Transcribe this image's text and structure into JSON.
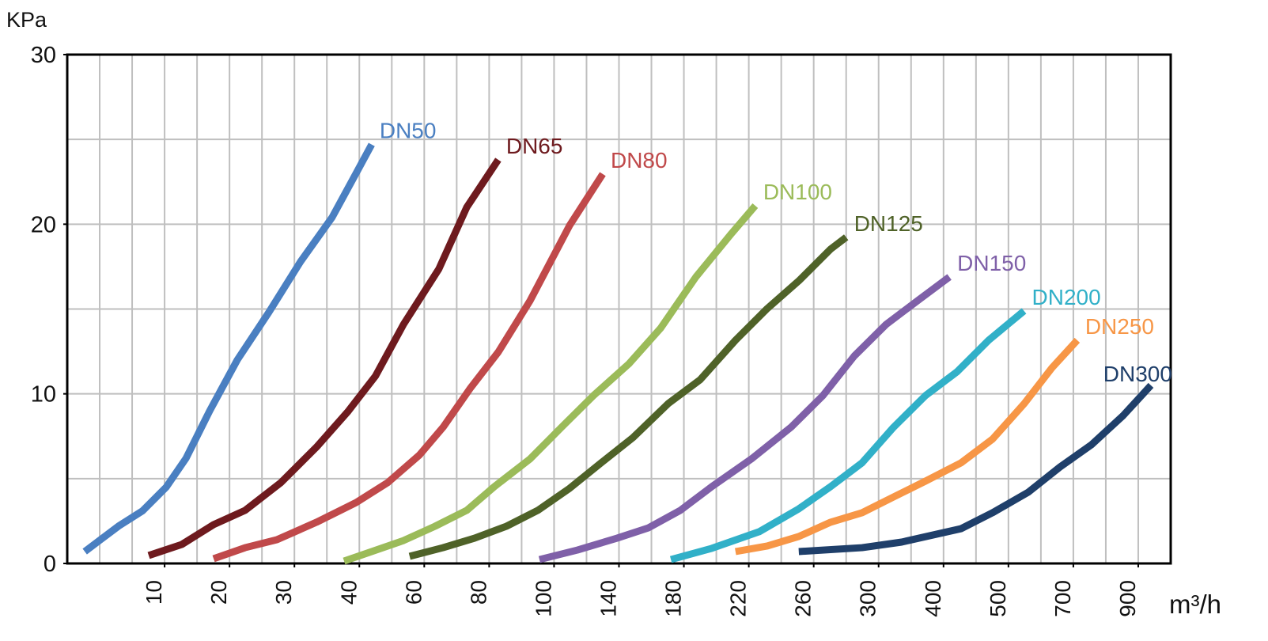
{
  "chart_data": {
    "type": "line",
    "y_label": "KPa",
    "x_label": "m³/h",
    "xlim": [
      0,
      34
    ],
    "ylim": [
      0,
      30
    ],
    "xticks": [
      {
        "value": 3,
        "label": "10"
      },
      {
        "value": 5,
        "label": "20"
      },
      {
        "value": 7,
        "label": "30"
      },
      {
        "value": 9,
        "label": "40"
      },
      {
        "value": 11,
        "label": "60"
      },
      {
        "value": 13,
        "label": "80"
      },
      {
        "value": 15,
        "label": "100"
      },
      {
        "value": 17,
        "label": "140"
      },
      {
        "value": 19,
        "label": "180"
      },
      {
        "value": 21,
        "label": "220"
      },
      {
        "value": 23,
        "label": "260"
      },
      {
        "value": 25,
        "label": "300"
      },
      {
        "value": 27,
        "label": "400"
      },
      {
        "value": 29,
        "label": "500"
      },
      {
        "value": 31,
        "label": "700"
      },
      {
        "value": 33,
        "label": "900"
      }
    ],
    "xgrid": [
      1,
      2,
      3,
      4,
      5,
      6,
      7,
      8,
      9,
      10,
      11,
      12,
      13,
      14,
      15,
      16,
      17,
      18,
      19,
      20,
      21,
      22,
      23,
      24,
      25,
      26,
      27,
      28,
      29,
      30,
      31,
      32,
      33
    ],
    "yticks": [
      0,
      10,
      20,
      30
    ],
    "ygrid": [
      5,
      10,
      15,
      20,
      25
    ],
    "grid": true,
    "series": [
      {
        "name": "DN50",
        "color": "#4a7fc1",
        "x": [
          0.54,
          1.58,
          2.32,
          3.05,
          3.66,
          4.39,
          5.24,
          6.21,
          7.19,
          8.16,
          8.9,
          9.38
        ],
        "values": [
          0.7,
          2.2,
          3.1,
          4.5,
          6.2,
          9.0,
          12.0,
          14.8,
          17.8,
          20.4,
          23.0,
          24.7
        ]
      },
      {
        "name": "DN65",
        "color": "#6e1a1e",
        "x": [
          2.51,
          3.53,
          4.51,
          5.48,
          6.58,
          7.68,
          8.65,
          9.5,
          10.36,
          11.45,
          12.31,
          13.28
        ],
        "values": [
          0.47,
          1.12,
          2.29,
          3.13,
          4.76,
          6.86,
          8.96,
          11.06,
          14.09,
          17.36,
          21.0,
          23.8
        ]
      },
      {
        "name": "DN80",
        "color": "#c0494a",
        "x": [
          4.51,
          5.48,
          6.46,
          7.68,
          8.9,
          9.87,
          10.85,
          11.58,
          12.43,
          13.28,
          14.26,
          15.48,
          16.5
        ],
        "values": [
          0.28,
          0.93,
          1.4,
          2.43,
          3.59,
          4.76,
          6.39,
          8.03,
          10.36,
          12.46,
          15.49,
          19.93,
          22.96
        ]
      },
      {
        "name": "DN100",
        "color": "#9bbb59",
        "x": [
          8.53,
          9.38,
          10.36,
          11.33,
          12.31,
          13.16,
          14.26,
          15.23,
          16.21,
          17.3,
          18.28,
          19.37,
          20.47,
          21.2
        ],
        "values": [
          0.14,
          0.7,
          1.35,
          2.19,
          3.13,
          4.53,
          6.16,
          8.03,
          9.89,
          11.76,
          13.86,
          16.89,
          19.46,
          21.09
        ]
      },
      {
        "name": "DN125",
        "color": "#4f6228",
        "x": [
          10.55,
          11.58,
          12.55,
          13.53,
          14.5,
          15.48,
          16.45,
          17.43,
          18.52,
          19.5,
          20.59,
          21.57,
          22.54,
          23.52,
          24.0
        ],
        "values": [
          0.42,
          0.93,
          1.49,
          2.19,
          3.13,
          4.43,
          5.93,
          7.42,
          9.43,
          10.83,
          13.16,
          15.03,
          16.66,
          18.53,
          19.23
        ]
      },
      {
        "name": "DN150",
        "color": "#7f60a8",
        "x": [
          14.55,
          15.72,
          16.94,
          17.91,
          18.89,
          19.86,
          21.08,
          22.3,
          23.28,
          24.25,
          25.23,
          26.2,
          27.18
        ],
        "values": [
          0.23,
          0.79,
          1.49,
          2.1,
          3.13,
          4.53,
          6.16,
          8.03,
          9.89,
          12.23,
          14.09,
          15.49,
          16.89
        ]
      },
      {
        "name": "DN200",
        "color": "#31b0c8",
        "x": [
          18.6,
          19.86,
          21.32,
          22.54,
          23.52,
          24.49,
          25.46,
          26.44,
          27.41,
          28.39,
          29.48
        ],
        "values": [
          0.23,
          0.89,
          1.87,
          3.22,
          4.53,
          5.93,
          8.03,
          9.89,
          11.29,
          13.16,
          14.89
        ]
      },
      {
        "name": "DN250",
        "color": "#f79646",
        "x": [
          20.59,
          21.57,
          22.54,
          23.52,
          24.49,
          25.46,
          26.44,
          27.54,
          28.51,
          29.49,
          30.34,
          31.12
        ],
        "values": [
          0.7,
          1.03,
          1.59,
          2.43,
          2.99,
          3.92,
          4.85,
          5.93,
          7.33,
          9.43,
          11.53,
          13.16
        ]
      },
      {
        "name": "DN300",
        "color": "#1f3f6a",
        "x": [
          22.54,
          24.49,
          25.71,
          27.54,
          28.51,
          29.61,
          30.59,
          31.56,
          32.54,
          33.39
        ],
        "values": [
          0.7,
          0.93,
          1.26,
          2.05,
          2.99,
          4.2,
          5.69,
          7.0,
          8.73,
          10.5
        ]
      }
    ]
  }
}
